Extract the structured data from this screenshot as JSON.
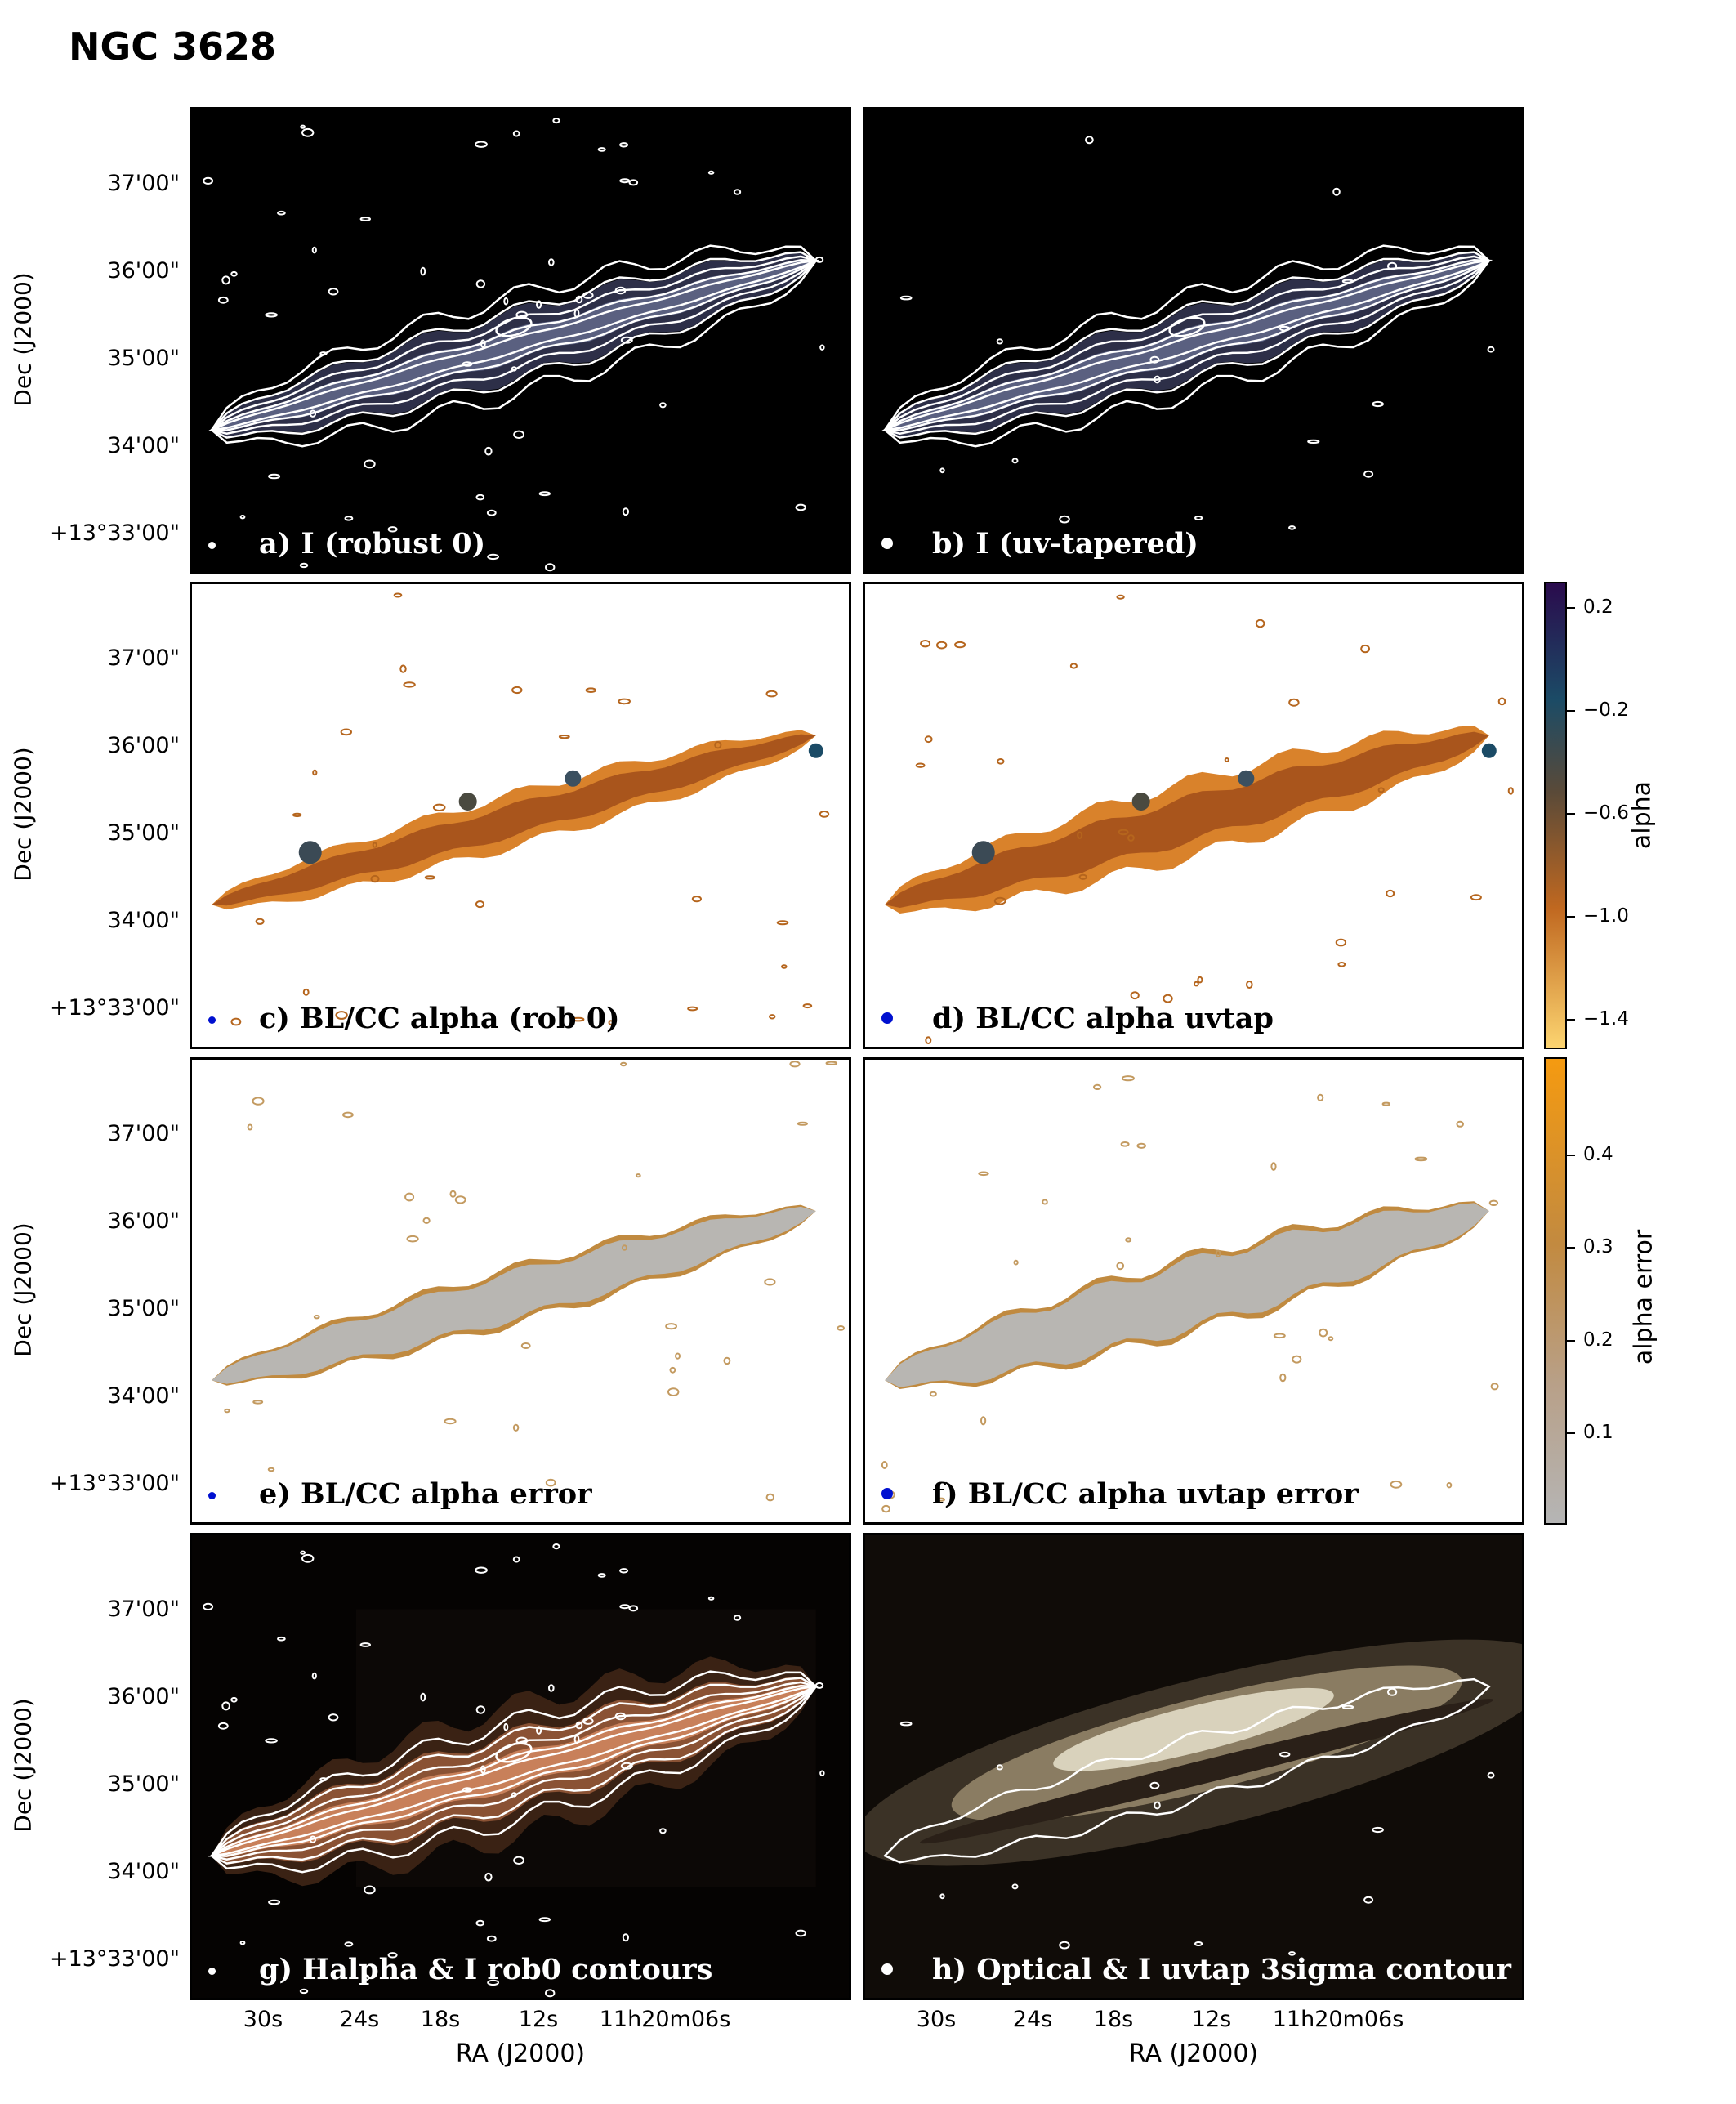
{
  "figure": {
    "title": "NGC 3628",
    "y_axis_label": "Dec (J2000)",
    "x_axis_label": "RA (J2000)",
    "y_ticks": [
      "37'00\"",
      "36'00\"",
      "35'00\"",
      "34'00\"",
      "+13°33'00\""
    ],
    "x_ticks": [
      "30s",
      "24s",
      "18s",
      "12s",
      "11h20m06s"
    ]
  },
  "panels": [
    {
      "id": "a",
      "label": "a) I (robust 0)",
      "style": "dark",
      "image": "radio-continuum-robust0"
    },
    {
      "id": "b",
      "label": "b) I (uv-tapered)",
      "style": "dark",
      "image": "radio-continuum-uvtapered"
    },
    {
      "id": "c",
      "label": "c) BL/CC alpha (rob 0)",
      "style": "light",
      "image": "spectral-index-robust0"
    },
    {
      "id": "d",
      "label": "d) BL/CC alpha uvtap",
      "style": "light",
      "image": "spectral-index-uvtap"
    },
    {
      "id": "e",
      "label": "e)  BL/CC alpha error",
      "style": "light",
      "image": "spectral-index-error"
    },
    {
      "id": "f",
      "label": "f) BL/CC alpha uvtap error",
      "style": "light",
      "image": "spectral-index-uvtap-error"
    },
    {
      "id": "g",
      "label": "g) Halpha & I rob0 contours",
      "style": "dark",
      "image": "halpha-with-contours"
    },
    {
      "id": "h",
      "label": "h) Optical & I uvtap 3sigma contour",
      "style": "dark",
      "image": "optical-with-contour"
    }
  ],
  "colorbars": {
    "alpha": {
      "label": "alpha",
      "ticks": [
        "0.2",
        "−0.2",
        "−0.6",
        "−1.0",
        "−1.4"
      ],
      "colors": [
        "#2a0b4d",
        "#1b4b66",
        "#5a4a38",
        "#c06820",
        "#fcd470"
      ]
    },
    "alpha_error": {
      "label": "alpha error",
      "ticks": [
        "0.4",
        "0.3",
        "0.2",
        "0.1"
      ],
      "colors": [
        "#f59a10",
        "#c28a40",
        "#b8a088",
        "#b5b5b5"
      ]
    }
  }
}
